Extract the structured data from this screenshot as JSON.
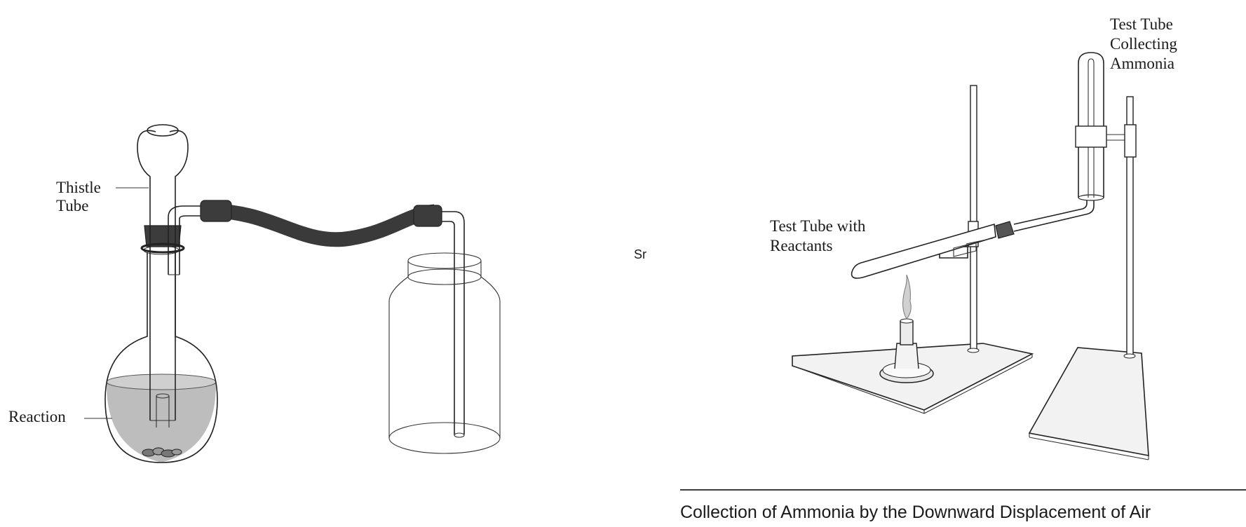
{
  "left_figure": {
    "labels": {
      "thistle_line1": "Thistle",
      "thistle_line2": "Tube",
      "reaction": "Reaction"
    }
  },
  "middle_mark": "Sr",
  "right_figure": {
    "labels": {
      "collecting_line1": "Test Tube",
      "collecting_line2": "Collecting",
      "collecting_line3": "Ammonia",
      "reactants_line1": "Test Tube with",
      "reactants_line2": "Reactants"
    },
    "caption": "Collection of Ammonia by the Downward Displacement of Air"
  },
  "colors": {
    "line": "#222222",
    "liquid": "#bdbdbd",
    "rubber": "#3a3a3a",
    "base": "#f2f2f2"
  }
}
